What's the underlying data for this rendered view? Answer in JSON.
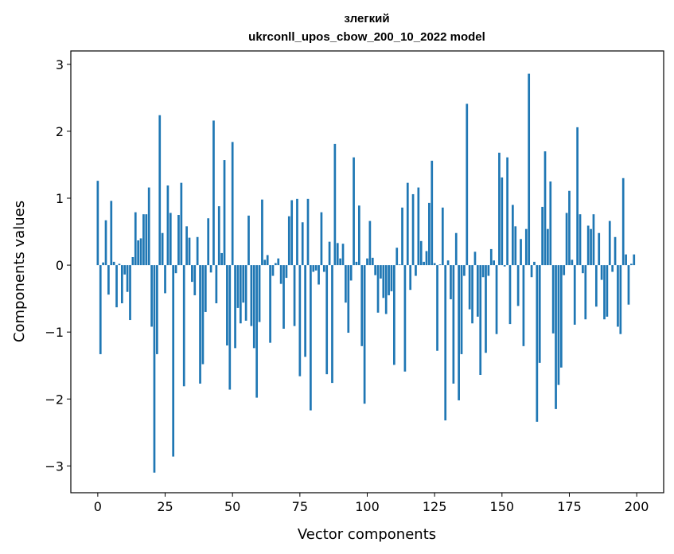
{
  "chart_data": {
    "type": "bar",
    "title": "злегкий",
    "subtitle": "ukrconll_upos_cbow_200_10_2022 model",
    "xlabel": "Vector components",
    "ylabel": "Components values",
    "xlim": [
      -10,
      210
    ],
    "ylim": [
      -3.4,
      3.2
    ],
    "xticks": [
      0,
      25,
      50,
      75,
      100,
      125,
      150,
      175,
      200
    ],
    "xtick_labels": [
      "0",
      "25",
      "50",
      "75",
      "100",
      "125",
      "150",
      "175",
      "200"
    ],
    "yticks": [
      3,
      2,
      1,
      0,
      -1,
      -2,
      -3
    ],
    "ytick_labels": [
      "3",
      "2",
      "1",
      "0",
      "−1",
      "−2",
      "−3"
    ],
    "bar_color": "#1f77b4",
    "grid": false,
    "values": [
      1.26,
      -1.33,
      0.04,
      0.67,
      -0.44,
      0.96,
      0.05,
      -0.63,
      0.02,
      -0.57,
      -0.14,
      -0.4,
      -0.82,
      0.12,
      0.79,
      0.37,
      0.4,
      0.76,
      0.76,
      1.16,
      -0.92,
      -3.1,
      -1.33,
      2.24,
      0.48,
      -0.42,
      1.19,
      0.78,
      -2.86,
      -0.12,
      0.75,
      1.23,
      -1.81,
      0.58,
      0.41,
      -0.25,
      -0.45,
      0.42,
      -1.77,
      -1.48,
      -0.7,
      0.7,
      -0.11,
      2.16,
      -0.57,
      0.88,
      0.18,
      1.57,
      -1.2,
      -1.86,
      1.84,
      -1.24,
      -0.64,
      -0.87,
      -0.56,
      -0.83,
      0.74,
      -0.91,
      -1.24,
      -1.98,
      -0.85,
      0.98,
      0.08,
      0.15,
      -1.16,
      -0.16,
      0.03,
      0.1,
      -0.28,
      -0.95,
      -0.19,
      0.73,
      0.97,
      -0.91,
      0.99,
      -1.66,
      0.64,
      -1.37,
      0.99,
      -2.17,
      -0.1,
      -0.08,
      -0.29,
      0.79,
      -0.1,
      -1.63,
      0.35,
      -1.76,
      1.81,
      0.33,
      0.1,
      0.32,
      -0.56,
      -1.01,
      -0.23,
      1.61,
      0.05,
      0.89,
      -1.21,
      -2.07,
      0.1,
      0.66,
      0.11,
      -0.15,
      -0.71,
      -0.2,
      -0.49,
      -0.73,
      -0.45,
      -0.39,
      -1.49,
      0.26,
      0.01,
      0.86,
      -1.59,
      1.23,
      -0.37,
      1.06,
      -0.16,
      1.16,
      0.36,
      0.05,
      0.21,
      0.93,
      1.56,
      0.03,
      -1.28,
      0.01,
      0.86,
      -2.32,
      0.07,
      -0.51,
      -1.77,
      0.48,
      -2.02,
      -1.33,
      -0.16,
      2.41,
      -0.66,
      -0.87,
      0.2,
      -0.77,
      -1.64,
      -0.18,
      -1.31,
      -0.16,
      0.24,
      0.07,
      -1.03,
      1.68,
      1.31,
      -0.02,
      1.61,
      -0.88,
      0.9,
      0.58,
      -0.61,
      0.39,
      -1.21,
      0.54,
      2.86,
      -0.18,
      0.05,
      -2.34,
      -1.46,
      0.87,
      1.7,
      0.54,
      1.25,
      -1.02,
      -2.15,
      -1.79,
      -1.53,
      -0.15,
      0.78,
      1.11,
      0.08,
      -0.89,
      2.06,
      0.76,
      -0.12,
      -0.81,
      0.59,
      0.54,
      0.76,
      -0.62,
      0.48,
      -0.22,
      -0.81,
      -0.77,
      0.66,
      -0.1,
      0.42,
      -0.92,
      -1.03,
      1.3,
      0.16,
      -0.59,
      0.02,
      0.16
    ]
  }
}
